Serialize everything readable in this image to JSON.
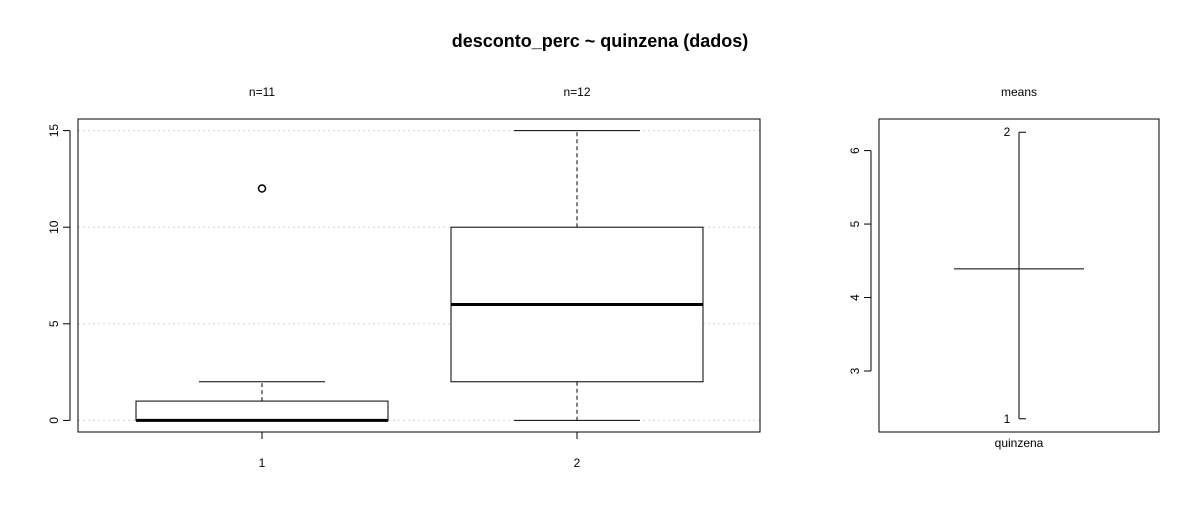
{
  "chart_data": [
    {
      "type": "box",
      "title": "desconto_perc ~ quinzena (dados)",
      "categories": [
        "1",
        "2"
      ],
      "counts": [
        "n=11",
        "n=12"
      ],
      "boxes": [
        {
          "category": "1",
          "whisker_low": 0,
          "q1": 0,
          "median": 0,
          "q3": 1,
          "whisker_high": 2,
          "outliers": [
            12
          ]
        },
        {
          "category": "2",
          "whisker_low": 0,
          "q1": 2,
          "median": 6,
          "q3": 10,
          "whisker_high": 15,
          "outliers": []
        }
      ],
      "yticks": [
        "0",
        "5",
        "10",
        "15"
      ],
      "ylim": [
        -0.6,
        15.6
      ],
      "grid": true
    },
    {
      "type": "means",
      "title": "means",
      "xlabel": "quinzena",
      "points": [
        {
          "label": "1",
          "value": 2.35
        },
        {
          "label": "2",
          "value": 6.25
        }
      ],
      "overall_mean": 4.39,
      "yticks": [
        "3",
        "4",
        "5",
        "6"
      ],
      "ylim": [
        2.17,
        6.43
      ]
    }
  ]
}
